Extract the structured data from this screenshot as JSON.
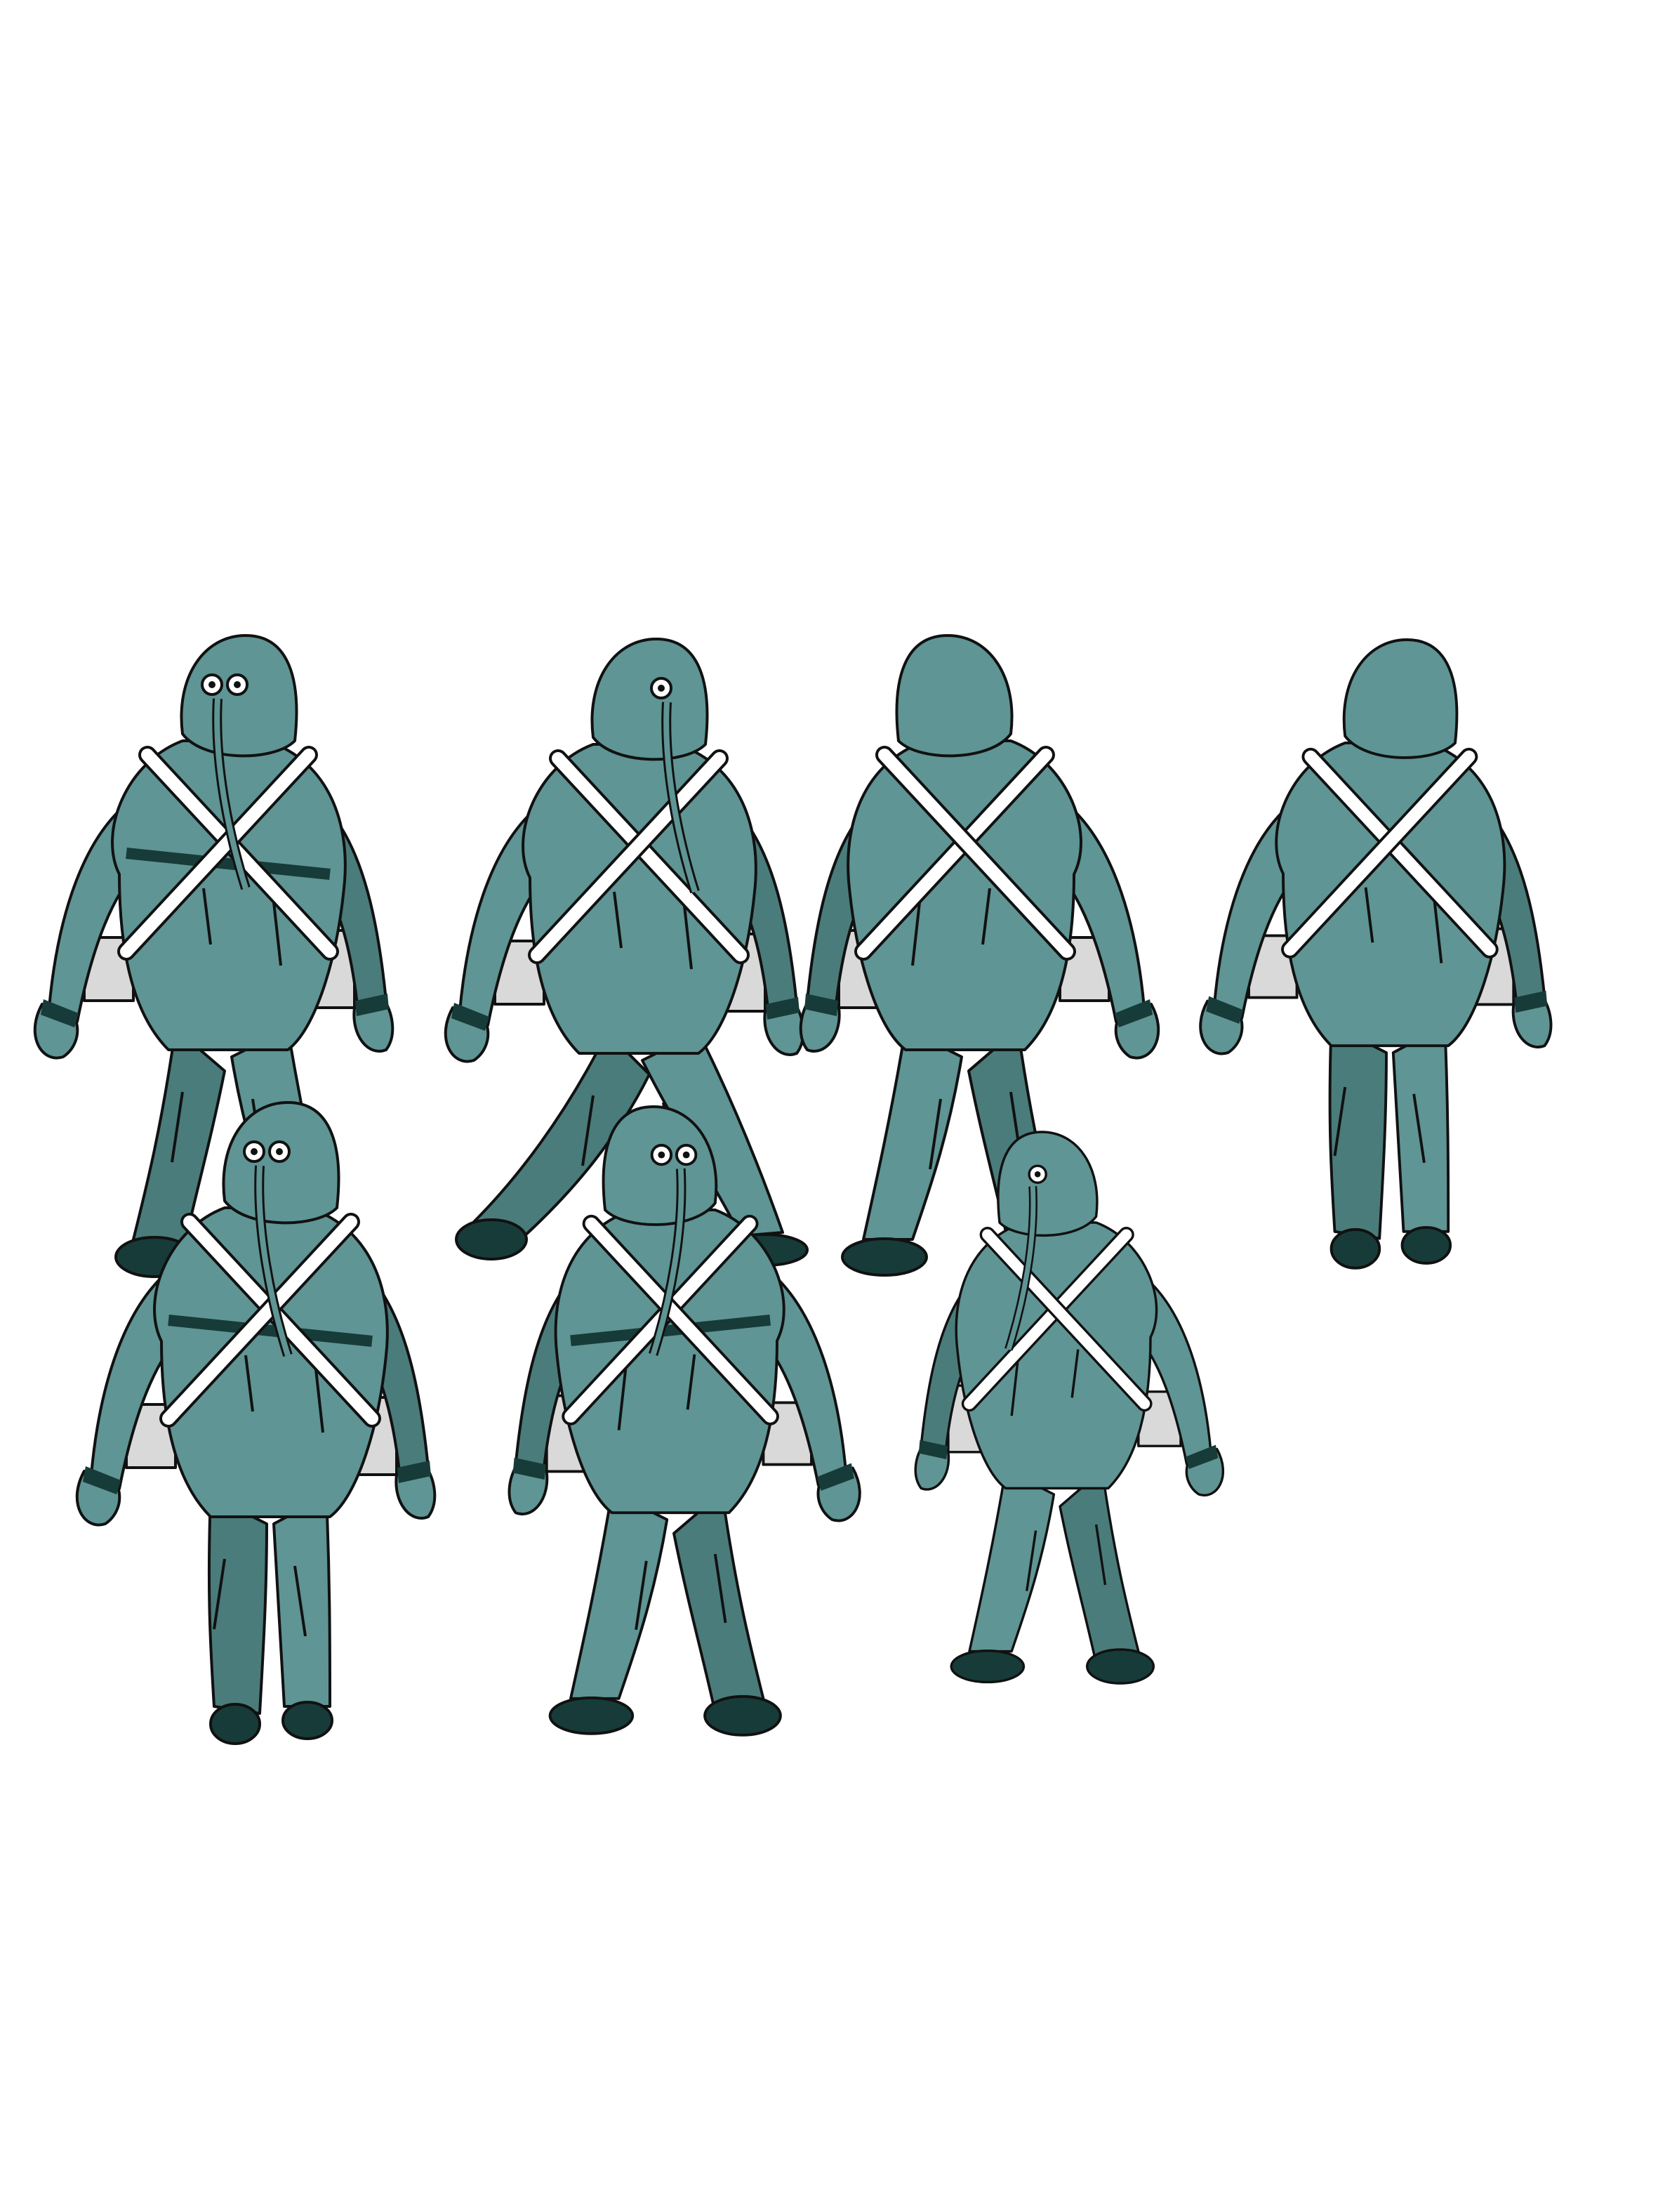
{
  "sheet": {
    "background": "#ffffff",
    "colors": {
      "suit": "#5f9594",
      "suit_shade": "#4a7c7b",
      "suit_dark": "#4c7270",
      "boots": "#173b38",
      "band": "#173b38",
      "strap": "#ffffff",
      "pouch": "#d9d9d9",
      "outline": "#111111",
      "eye": "#ffffff"
    },
    "sprites": [
      {
        "name": "sprite-front-right-walk",
        "view": "front",
        "flip": false,
        "hasBag": true,
        "step": "walk"
      },
      {
        "name": "sprite-side-right-walk",
        "view": "side",
        "flip": false,
        "hasBag": true,
        "step": "stride"
      },
      {
        "name": "sprite-back-left-walk",
        "view": "back",
        "flip": true,
        "hasBag": true,
        "step": "walk"
      },
      {
        "name": "sprite-back-walk",
        "view": "back",
        "flip": false,
        "hasBag": true,
        "step": "stand"
      },
      {
        "name": "sprite-front-idle",
        "view": "front",
        "flip": false,
        "hasBag": true,
        "step": "stand"
      },
      {
        "name": "sprite-front-left-walk",
        "view": "front",
        "flip": true,
        "hasBag": true,
        "step": "walk"
      },
      {
        "name": "sprite-side-left-walk",
        "view": "side",
        "flip": true,
        "hasBag": true,
        "step": "walk"
      }
    ]
  }
}
